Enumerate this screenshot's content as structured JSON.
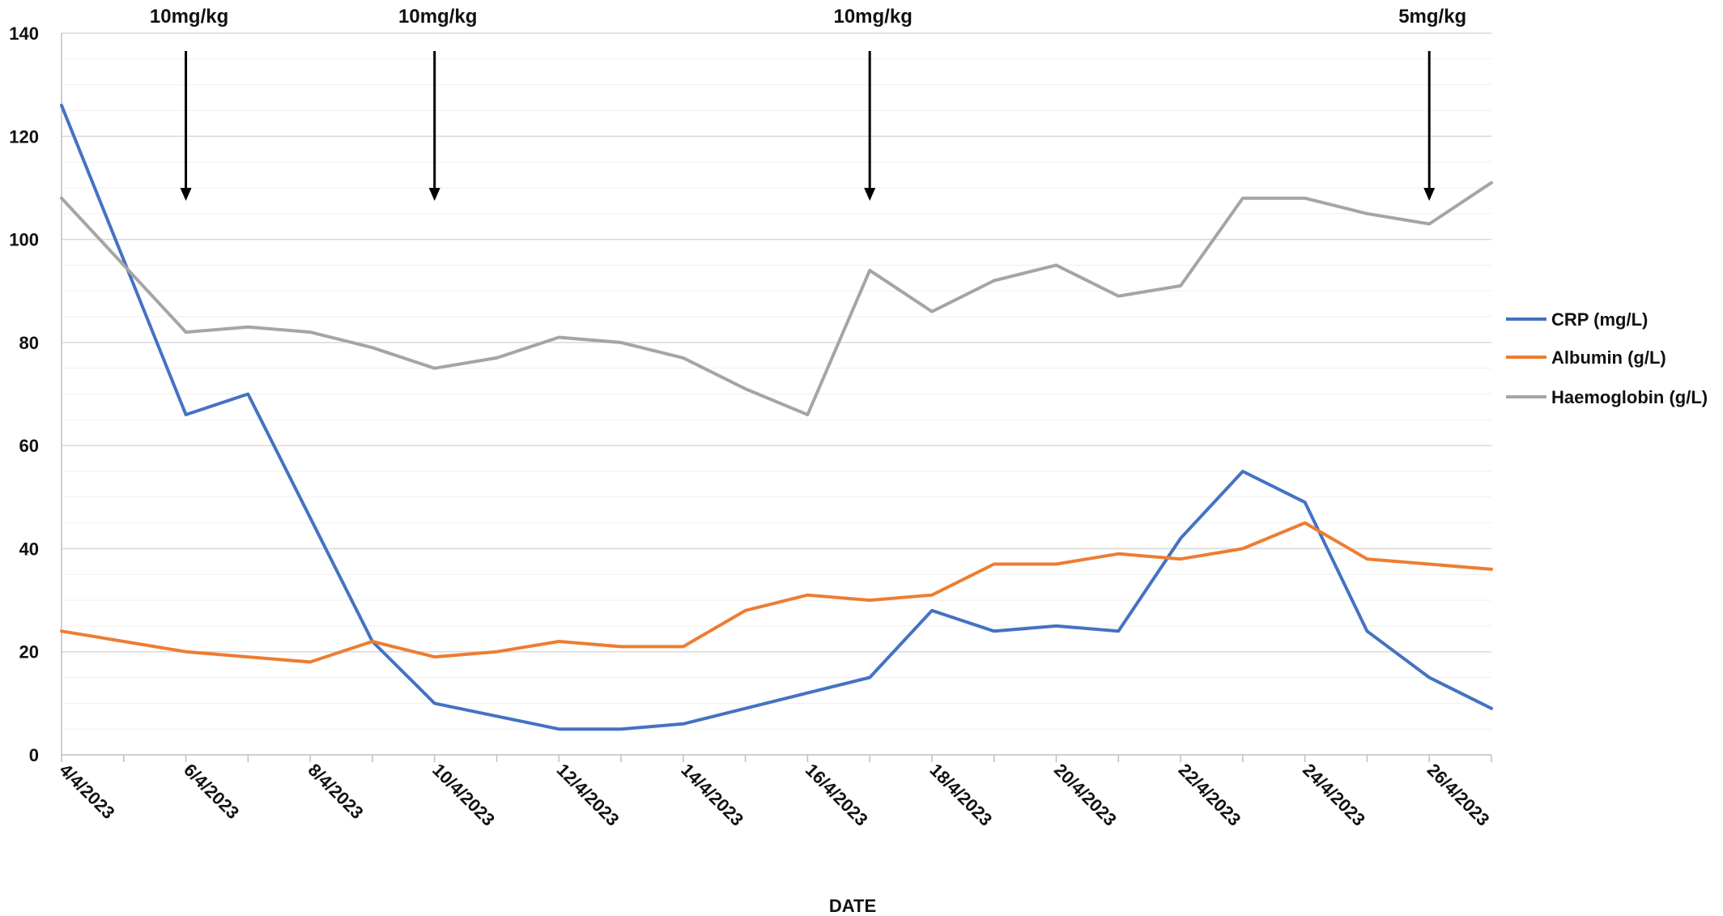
{
  "chart_data": {
    "type": "line",
    "title": "",
    "xlabel": "DATE",
    "ylabel": "",
    "ylim": [
      0,
      140
    ],
    "y_ticks": [
      0,
      20,
      40,
      60,
      80,
      100,
      120,
      140
    ],
    "grid": "horizontal",
    "legend_position": "right",
    "x": [
      "4/4/2023",
      "5/4/2023",
      "6/4/2023",
      "7/4/2023",
      "8/4/2023",
      "9/4/2023",
      "10/4/2023",
      "11/4/2023",
      "12/4/2023",
      "13/4/2023",
      "14/4/2023",
      "15/4/2023",
      "16/4/2023",
      "17/4/2023",
      "18/4/2023",
      "19/4/2023",
      "20/4/2023",
      "21/4/2023",
      "22/4/2023",
      "23/4/2023",
      "24/4/2023",
      "25/4/2023",
      "26/4/2023",
      "27/4/2023"
    ],
    "x_tick_labels": [
      "4/4/2023",
      "6/4/2023",
      "8/4/2023",
      "10/4/2023",
      "12/4/2023",
      "14/4/2023",
      "16/4/2023",
      "18/4/2023",
      "20/4/2023",
      "22/4/2023",
      "24/4/2023",
      "26/4/2023"
    ],
    "series": [
      {
        "name": "CRP (mg/L)",
        "color": "#4472C4",
        "values": [
          126,
          96,
          66,
          70,
          46,
          22,
          10,
          7.5,
          5,
          5,
          6,
          9,
          12,
          15,
          28,
          24,
          25,
          24,
          42,
          55,
          49,
          24,
          15,
          9
        ]
      },
      {
        "name": "Albumin (g/L)",
        "color": "#ED7D31",
        "values": [
          24,
          22,
          20,
          19,
          18,
          22,
          19,
          20,
          22,
          21,
          21,
          28,
          31,
          30,
          31,
          37,
          37,
          39,
          38,
          40,
          45,
          38,
          37,
          36
        ]
      },
      {
        "name": "Haemoglobin (g/L)",
        "color": "#A5A5A5",
        "values": [
          108,
          95,
          82,
          83,
          82,
          79,
          75,
          77,
          81,
          80,
          77,
          71,
          66,
          94,
          86,
          92,
          95,
          89,
          91,
          108,
          108,
          105,
          103,
          111
        ]
      }
    ],
    "annotations": [
      {
        "text": "10mg/kg",
        "x": "6/4/2023",
        "arrow": "down"
      },
      {
        "text": "10mg/kg",
        "x": "10/4/2023",
        "arrow": "down"
      },
      {
        "text": "10mg/kg",
        "x": "17/4/2023",
        "arrow": "down"
      },
      {
        "text": "5mg/kg",
        "x": "26/4/2023",
        "arrow": "down"
      }
    ]
  }
}
